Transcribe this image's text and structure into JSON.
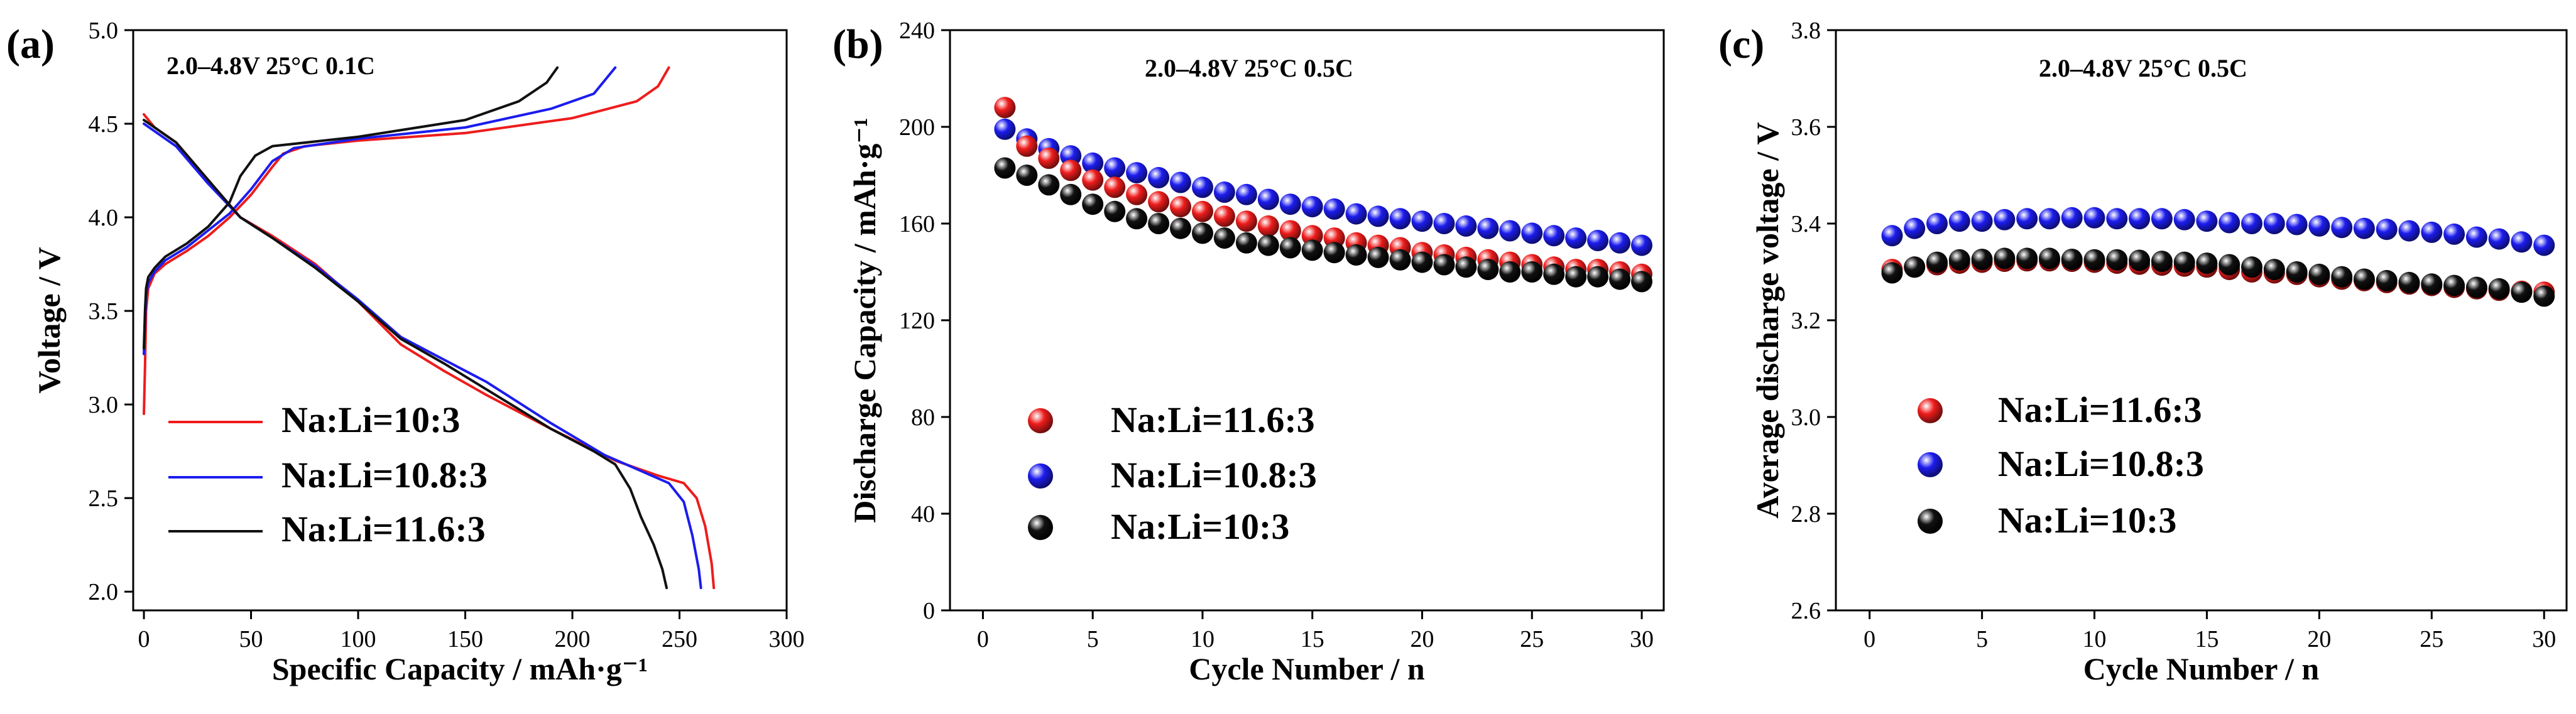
{
  "colors": {
    "red": "#ee1c1c",
    "blue": "#1c1cee",
    "black": "#111111"
  },
  "chart_data": [
    {
      "panel": "(a)",
      "type": "line",
      "annotation": "2.0–4.8V  25°C  0.1C",
      "xlabel": "Specific Capacity / mAh·g⁻¹",
      "ylabel": "Voltage / V",
      "xlim": [
        -5,
        300
      ],
      "ylim": [
        1.9,
        5.0
      ],
      "xticks": [
        0,
        50,
        100,
        150,
        200,
        250,
        300
      ],
      "yticks": [
        2.0,
        2.5,
        3.0,
        3.5,
        4.0,
        4.5,
        5.0
      ],
      "ytick_labels": [
        "2.0",
        "2.5",
        "3.0",
        "3.5",
        "4.0",
        "4.5",
        "5.0"
      ],
      "legend_position": "lower-left",
      "series": [
        {
          "name": "Na:Li=10:3",
          "color": "red",
          "charge": [
            [
              0,
              2.95
            ],
            [
              0.5,
              3.2
            ],
            [
              1,
              3.5
            ],
            [
              2,
              3.62
            ],
            [
              5,
              3.7
            ],
            [
              10,
              3.75
            ],
            [
              20,
              3.82
            ],
            [
              30,
              3.9
            ],
            [
              40,
              4.0
            ],
            [
              50,
              4.12
            ],
            [
              60,
              4.27
            ],
            [
              65,
              4.34
            ],
            [
              75,
              4.38
            ],
            [
              100,
              4.41
            ],
            [
              150,
              4.45
            ],
            [
              200,
              4.53
            ],
            [
              230,
              4.62
            ],
            [
              240,
              4.7
            ],
            [
              245,
              4.8
            ]
          ],
          "discharge": [
            [
              0,
              4.55
            ],
            [
              5,
              4.48
            ],
            [
              15,
              4.4
            ],
            [
              30,
              4.2
            ],
            [
              45,
              4.0
            ],
            [
              60,
              3.9
            ],
            [
              80,
              3.75
            ],
            [
              100,
              3.55
            ],
            [
              120,
              3.32
            ],
            [
              140,
              3.18
            ],
            [
              160,
              3.05
            ],
            [
              190,
              2.87
            ],
            [
              220,
              2.7
            ],
            [
              240,
              2.62
            ],
            [
              252,
              2.58
            ],
            [
              258,
              2.5
            ],
            [
              262,
              2.35
            ],
            [
              265,
              2.15
            ],
            [
              266,
              2.02
            ]
          ]
        },
        {
          "name": "Na:Li=10.8:3",
          "color": "blue",
          "charge": [
            [
              0,
              3.27
            ],
            [
              0.5,
              3.45
            ],
            [
              1,
              3.58
            ],
            [
              2,
              3.65
            ],
            [
              5,
              3.71
            ],
            [
              10,
              3.77
            ],
            [
              20,
              3.84
            ],
            [
              30,
              3.93
            ],
            [
              40,
              4.02
            ],
            [
              50,
              4.15
            ],
            [
              60,
              4.3
            ],
            [
              70,
              4.37
            ],
            [
              100,
              4.42
            ],
            [
              150,
              4.48
            ],
            [
              190,
              4.58
            ],
            [
              210,
              4.66
            ],
            [
              220,
              4.8
            ]
          ],
          "discharge": [
            [
              0,
              4.5
            ],
            [
              5,
              4.46
            ],
            [
              15,
              4.38
            ],
            [
              30,
              4.18
            ],
            [
              45,
              4.0
            ],
            [
              60,
              3.89
            ],
            [
              80,
              3.74
            ],
            [
              100,
              3.56
            ],
            [
              120,
              3.36
            ],
            [
              140,
              3.24
            ],
            [
              160,
              3.12
            ],
            [
              190,
              2.9
            ],
            [
              215,
              2.73
            ],
            [
              235,
              2.63
            ],
            [
              245,
              2.58
            ],
            [
              252,
              2.48
            ],
            [
              256,
              2.3
            ],
            [
              259,
              2.12
            ],
            [
              260,
              2.02
            ]
          ]
        },
        {
          "name": "Na:Li=11.6:3",
          "color": "black",
          "charge": [
            [
              0,
              3.3
            ],
            [
              0.5,
              3.5
            ],
            [
              1,
              3.62
            ],
            [
              2,
              3.68
            ],
            [
              5,
              3.73
            ],
            [
              10,
              3.79
            ],
            [
              20,
              3.86
            ],
            [
              30,
              3.95
            ],
            [
              40,
              4.08
            ],
            [
              45,
              4.22
            ],
            [
              52,
              4.33
            ],
            [
              60,
              4.38
            ],
            [
              100,
              4.43
            ],
            [
              150,
              4.52
            ],
            [
              175,
              4.62
            ],
            [
              188,
              4.72
            ],
            [
              193,
              4.8
            ]
          ],
          "discharge": [
            [
              0,
              4.52
            ],
            [
              5,
              4.48
            ],
            [
              15,
              4.4
            ],
            [
              30,
              4.2
            ],
            [
              45,
              4.0
            ],
            [
              60,
              3.89
            ],
            [
              80,
              3.73
            ],
            [
              100,
              3.55
            ],
            [
              120,
              3.35
            ],
            [
              140,
              3.22
            ],
            [
              160,
              3.08
            ],
            [
              190,
              2.87
            ],
            [
              210,
              2.75
            ],
            [
              220,
              2.68
            ],
            [
              227,
              2.55
            ],
            [
              232,
              2.4
            ],
            [
              238,
              2.25
            ],
            [
              242,
              2.12
            ],
            [
              244,
              2.02
            ]
          ]
        }
      ]
    },
    {
      "panel": "(b)",
      "type": "scatter",
      "annotation": "2.0–4.8V  25°C  0.5C",
      "xlabel": "Cycle Number / n",
      "ylabel": "Discharge Capacity / mAh·g⁻¹",
      "xlim": [
        -1.5,
        31
      ],
      "ylim": [
        0,
        240
      ],
      "xticks": [
        0,
        5,
        10,
        15,
        20,
        25,
        30
      ],
      "yticks": [
        0,
        40,
        80,
        120,
        160,
        200,
        240
      ],
      "ytick_labels": [
        "0",
        "40",
        "80",
        "120",
        "160",
        "200",
        "240"
      ],
      "legend_position": "lower-left",
      "x": [
        1,
        2,
        3,
        4,
        5,
        6,
        7,
        8,
        9,
        10,
        11,
        12,
        13,
        14,
        15,
        16,
        17,
        18,
        19,
        20,
        21,
        22,
        23,
        24,
        25,
        26,
        27,
        28,
        29,
        30
      ],
      "series": [
        {
          "name": "Na:Li=11.6:3",
          "color": "red",
          "values": [
            208,
            192,
            187,
            182,
            178,
            175,
            172,
            169,
            167,
            165,
            163,
            161,
            159,
            157,
            155,
            154,
            152,
            151,
            150,
            148,
            147,
            146,
            145,
            144,
            143,
            142,
            141,
            141,
            140,
            139
          ]
        },
        {
          "name": "Na:Li=10.8:3",
          "color": "blue",
          "values": [
            199,
            195,
            191,
            188,
            185,
            183,
            181,
            179,
            177,
            175,
            173,
            172,
            170,
            168,
            167,
            166,
            164,
            163,
            162,
            161,
            160,
            159,
            158,
            157,
            156,
            155,
            154,
            153,
            152,
            151
          ]
        },
        {
          "name": "Na:Li=10:3",
          "color": "black",
          "values": [
            183,
            180,
            176,
            172,
            168,
            165,
            162,
            160,
            158,
            156,
            154,
            152,
            151,
            150,
            149,
            148,
            147,
            146,
            145,
            144,
            143,
            142,
            141,
            140,
            140,
            139,
            138,
            138,
            137,
            136
          ]
        }
      ]
    },
    {
      "panel": "(c)",
      "type": "scatter",
      "annotation": "2.0–4.8V  25°C  0.5C",
      "xlabel": "Cycle Number / n",
      "ylabel": "Average discharge voltage / V",
      "xlim": [
        -1.5,
        31
      ],
      "ylim": [
        2.6,
        3.8
      ],
      "xticks": [
        0,
        5,
        10,
        15,
        20,
        25,
        30
      ],
      "yticks": [
        2.6,
        2.8,
        3.0,
        3.2,
        3.4,
        3.6,
        3.8
      ],
      "ytick_labels": [
        "2.6",
        "2.8",
        "3.0",
        "3.2",
        "3.4",
        "3.6",
        "3.8"
      ],
      "legend_position": "lower-left",
      "x": [
        1,
        2,
        3,
        4,
        5,
        6,
        7,
        8,
        9,
        10,
        11,
        12,
        13,
        14,
        15,
        16,
        17,
        18,
        19,
        20,
        21,
        22,
        23,
        24,
        25,
        26,
        27,
        28,
        29,
        30
      ],
      "series": [
        {
          "name": "Na:Li=11.6:3",
          "color": "red",
          "values": [
            3.305,
            3.31,
            3.315,
            3.318,
            3.32,
            3.322,
            3.323,
            3.323,
            3.322,
            3.32,
            3.318,
            3.316,
            3.314,
            3.312,
            3.31,
            3.305,
            3.3,
            3.298,
            3.295,
            3.29,
            3.285,
            3.282,
            3.278,
            3.275,
            3.272,
            3.268,
            3.265,
            3.262,
            3.26,
            3.258
          ]
        },
        {
          "name": "Na:Li=10.8:3",
          "color": "blue",
          "values": [
            3.375,
            3.39,
            3.4,
            3.405,
            3.405,
            3.408,
            3.41,
            3.41,
            3.412,
            3.412,
            3.41,
            3.41,
            3.41,
            3.408,
            3.405,
            3.402,
            3.4,
            3.4,
            3.398,
            3.395,
            3.392,
            3.39,
            3.388,
            3.385,
            3.382,
            3.378,
            3.372,
            3.368,
            3.362,
            3.355
          ]
        },
        {
          "name": "Na:Li=10:3",
          "color": "black",
          "values": [
            3.298,
            3.31,
            3.32,
            3.325,
            3.326,
            3.328,
            3.328,
            3.328,
            3.326,
            3.325,
            3.325,
            3.324,
            3.322,
            3.32,
            3.318,
            3.315,
            3.31,
            3.305,
            3.3,
            3.295,
            3.29,
            3.285,
            3.282,
            3.278,
            3.275,
            3.272,
            3.268,
            3.265,
            3.258,
            3.25
          ]
        }
      ]
    }
  ]
}
